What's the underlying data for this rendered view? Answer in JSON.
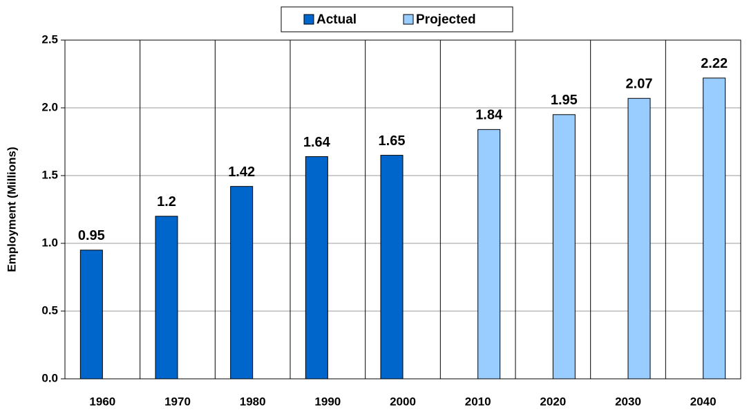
{
  "chart_data": {
    "type": "bar",
    "y_label": "Employment (Millions)",
    "categories": [
      "1960",
      "1970",
      "1980",
      "1990",
      "2000",
      "2010",
      "2020",
      "2030",
      "2040"
    ],
    "series": [
      {
        "name": "Actual",
        "color": "#0066cc",
        "values": [
          0.95,
          1.2,
          1.42,
          1.64,
          1.65,
          null,
          null,
          null,
          null
        ]
      },
      {
        "name": "Projected",
        "color": "#99ccff",
        "values": [
          null,
          null,
          null,
          null,
          null,
          1.84,
          1.95,
          2.07,
          2.22
        ]
      }
    ],
    "ylim": [
      0,
      2.5
    ],
    "yticks": [
      {
        "value": 0,
        "label": "0.0"
      },
      0.5,
      {
        "value": 1,
        "label": "1.0"
      },
      1.5,
      {
        "value": 2,
        "label": "2.0"
      },
      2.5
    ],
    "grid": true,
    "legend": "top"
  }
}
